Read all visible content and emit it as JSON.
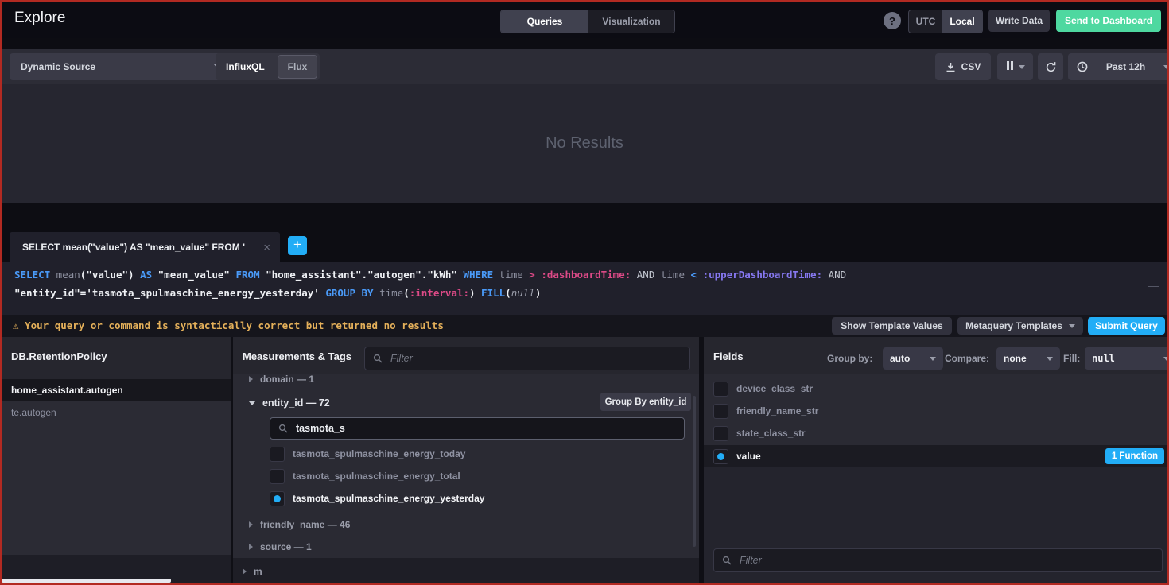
{
  "topnav": {
    "title": "Explore",
    "queries_label": "Queries",
    "visualization_label": "Visualization",
    "help_label": "?",
    "utc_label": "UTC",
    "local_label": "Local",
    "write_data_label": "Write Data",
    "send_dashboard_label": "Send to Dashboard"
  },
  "toolbar": {
    "source_label": "Dynamic Source",
    "influxql_label": "InfluxQL",
    "flux_label": "Flux",
    "csv_label": "CSV",
    "time_range_label": "Past 12h"
  },
  "graph": {
    "empty_text": "No Results"
  },
  "query_tab": {
    "label": "SELECT mean(\"value\") AS \"mean_value\" FROM \"h...",
    "close_label": "×",
    "add_label": "+"
  },
  "editor": {
    "line1": [
      {
        "t": "SELECT",
        "c": "kw"
      },
      {
        "t": " mean",
        "c": "fn"
      },
      {
        "t": "(",
        "c": "str"
      },
      {
        "t": "\"value\"",
        "c": "str"
      },
      {
        "t": ")",
        "c": "str"
      },
      {
        "t": " AS",
        "c": "kw"
      },
      {
        "t": " \"mean_value\"",
        "c": "str"
      },
      {
        "t": " FROM",
        "c": "kw"
      },
      {
        "t": " \"home_assistant\".\"autogen\".\"kWh\"",
        "c": "str"
      },
      {
        "t": " WHERE",
        "c": "kw"
      },
      {
        "t": " time",
        "c": "fn"
      },
      {
        "t": " >",
        "c": "opp"
      },
      {
        "t": " :dashboardTime:",
        "c": "tv1"
      },
      {
        "t": " AND",
        "c": "plain"
      },
      {
        "t": " time",
        "c": "fn"
      },
      {
        "t": " <",
        "c": "op"
      },
      {
        "t": " :upperDashboardTime:",
        "c": "tv2"
      },
      {
        "t": " AND",
        "c": "plain"
      }
    ],
    "line2": [
      {
        "t": "\"entity_id\"",
        "c": "str"
      },
      {
        "t": "=",
        "c": "str"
      },
      {
        "t": "'tasmota_spulmaschine_energy_yesterday'",
        "c": "str"
      },
      {
        "t": " GROUP BY",
        "c": "kw"
      },
      {
        "t": " time",
        "c": "fn"
      },
      {
        "t": "(",
        "c": "str"
      },
      {
        "t": ":interval:",
        "c": "tv1"
      },
      {
        "t": ")",
        "c": "str"
      },
      {
        "t": " FILL",
        "c": "kw"
      },
      {
        "t": "(",
        "c": "str"
      },
      {
        "t": "null",
        "c": "nul"
      },
      {
        "t": ")",
        "c": "str"
      }
    ],
    "collapse_label": "—"
  },
  "warning": {
    "icon": "⚠",
    "text": "Your query or command is syntactically correct but returned no results"
  },
  "actions": {
    "show_template_label": "Show Template Values",
    "metaquery_label": "Metaquery Templates",
    "submit_label": "Submit Query"
  },
  "left_panel": {
    "header": "DB.RetentionPolicy",
    "items": [
      {
        "label": "home_assistant.autogen",
        "selected": true
      },
      {
        "label": "te.autogen",
        "selected": false
      }
    ]
  },
  "middle_panel": {
    "header": "Measurements & Tags",
    "filter_placeholder": "Filter",
    "domain_row": "domain — 1",
    "entity_row": "entity_id — 72",
    "group_by_button": "Group By entity_id",
    "search_value": "tasmota_s",
    "tag_values": [
      {
        "label": "tasmota_spulmaschine_energy_today",
        "checked": false
      },
      {
        "label": "tasmota_spulmaschine_energy_total",
        "checked": false
      },
      {
        "label": "tasmota_spulmaschine_energy_yesterday",
        "checked": true
      }
    ],
    "friendly_row": "friendly_name — 46",
    "source_row": "source — 1",
    "bottom_row": "m"
  },
  "right_panel": {
    "header": "Fields",
    "group_by_label": "Group by:",
    "group_by_value": "auto",
    "compare_label": "Compare:",
    "compare_value": "none",
    "fill_label": "Fill:",
    "fill_value": "null",
    "fields": [
      {
        "label": "device_class_str",
        "checked": false
      },
      {
        "label": "friendly_name_str",
        "checked": false
      },
      {
        "label": "state_class_str",
        "checked": false
      },
      {
        "label": "value",
        "checked": true,
        "badge": "1 Function"
      }
    ],
    "filter_placeholder": "Filter"
  },
  "colors": {
    "accent_blue": "#22adf6",
    "green": "#4ed8a0",
    "warning_yellow": "#e4b05a",
    "keyword_blue": "#4a9af8",
    "temp_var_pink": "#dd4a87",
    "temp_var_purple": "#8678f0",
    "frame_red": "#b22a22"
  }
}
